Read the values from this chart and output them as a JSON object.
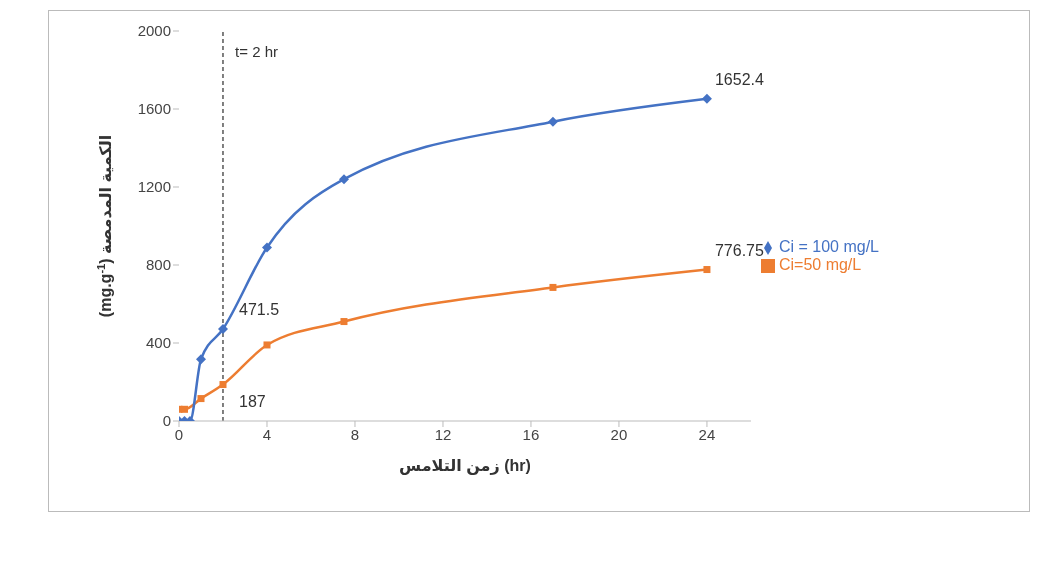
{
  "chart_data": {
    "type": "line",
    "xlabel": "زمن التلامس (hr)",
    "ylabel": "الكمية المدمصة (mg.g$^{-1}$)",
    "xlim": [
      0,
      26
    ],
    "xticks": [
      0,
      4,
      8,
      12,
      16,
      20,
      24
    ],
    "ylim": [
      0,
      2000
    ],
    "yticks": [
      0,
      400,
      800,
      1200,
      1600,
      2000
    ],
    "grid": false,
    "legend": "right",
    "ref_lines": [
      {
        "axis": "x",
        "value": 2,
        "label": "t= 2 hr",
        "color": "#000000",
        "line_style": "dashed"
      }
    ],
    "series": [
      {
        "name": "Ci=50 mg/L",
        "color": "#ed7d31",
        "marker": "square",
        "x": [
          0,
          0.25,
          1,
          2,
          4,
          7.5,
          17,
          24
        ],
        "values": [
          60,
          60,
          115,
          187,
          390,
          510,
          685,
          776.75
        ],
        "value_labels": [
          null,
          null,
          null,
          "187",
          null,
          null,
          null,
          "776.75"
        ]
      },
      {
        "name": "Ci = 100 mg/L",
        "color": "#4472c4",
        "marker": "diamond",
        "x": [
          0,
          0.25,
          0.5,
          1,
          2,
          4,
          7.5,
          17,
          24
        ],
        "values": [
          0,
          0,
          0,
          317,
          471.5,
          890,
          1240,
          1535,
          1652.4
        ],
        "value_labels": [
          null,
          null,
          null,
          null,
          "471.5",
          null,
          null,
          null,
          "1652.4"
        ]
      }
    ]
  }
}
